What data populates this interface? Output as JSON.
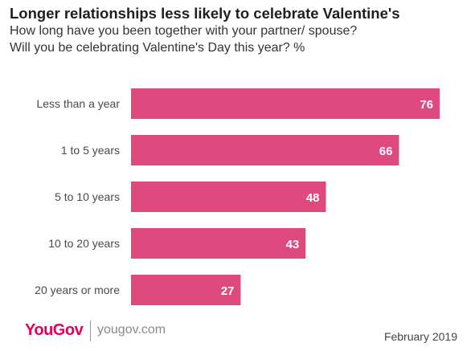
{
  "chart_data": {
    "type": "bar",
    "orientation": "horizontal",
    "title": "Longer relationships less likely to celebrate Valentine's",
    "subtitle_lines": [
      "How long have you been together with your partner/ spouse?",
      "Will you be celebrating Valentine's Day this year? %"
    ],
    "categories": [
      "Less than a year",
      "1 to 5 years",
      "5 to 10 years",
      "10 to 20 years",
      "20 years or more"
    ],
    "values": [
      76,
      66,
      48,
      43,
      27
    ],
    "data_labels": [
      "76",
      "66",
      "48",
      "43",
      "27"
    ],
    "xlabel": "",
    "ylabel": "",
    "xlim": [
      0,
      76
    ],
    "grid": false,
    "legend": "none",
    "bar_color": "#de4a7e",
    "label_color": "#ffffff"
  },
  "footer": {
    "brand": "YouGov",
    "url": "yougov.com",
    "date": "February 2019",
    "brand_color": "#e2005a"
  }
}
